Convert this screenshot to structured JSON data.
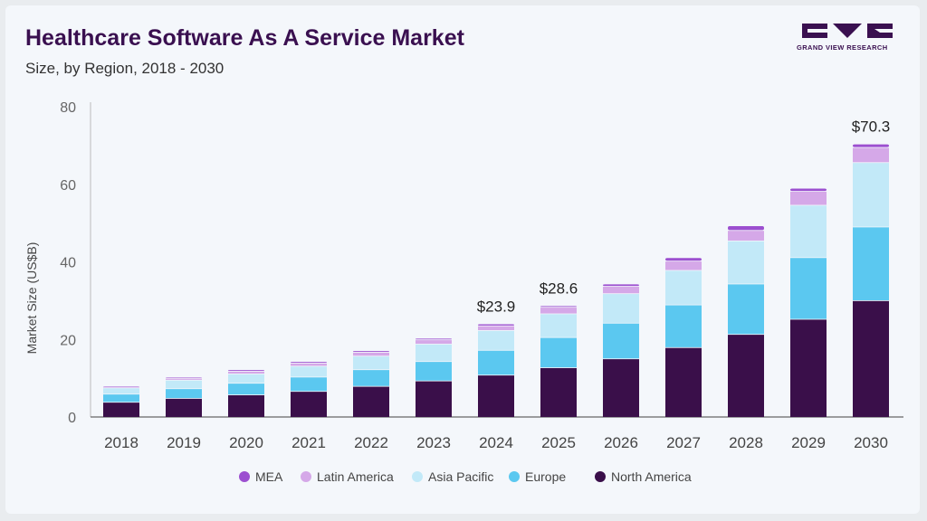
{
  "header": {
    "title": "Healthcare Software As A Service Market",
    "subtitle": "Size, by Region, 2018 - 2030",
    "logo_text": "GRAND VIEW RESEARCH"
  },
  "chart_data": {
    "type": "bar",
    "stacked": true,
    "ylabel": "Market Size (US$B)",
    "xlabel": "",
    "ylim": [
      0,
      80
    ],
    "yticks": [
      0,
      20,
      40,
      60,
      80
    ],
    "grid": false,
    "legend_position": "bottom",
    "categories": [
      "2018",
      "2019",
      "2020",
      "2021",
      "2022",
      "2023",
      "2024",
      "2025",
      "2026",
      "2027",
      "2028",
      "2029",
      "2030"
    ],
    "series": [
      {
        "name": "North America",
        "color": "#3a0f4a",
        "values": [
          3.7,
          4.7,
          5.6,
          6.5,
          7.8,
          9.2,
          10.7,
          12.6,
          14.9,
          17.8,
          21.2,
          25.1,
          29.9
        ]
      },
      {
        "name": "Europe",
        "color": "#5bc8f0",
        "values": [
          2.1,
          2.5,
          3.0,
          3.7,
          4.3,
          5.0,
          6.4,
          7.8,
          9.2,
          11.0,
          13.0,
          15.9,
          19.0
        ]
      },
      {
        "name": "Asia Pacific",
        "color": "#c2e9f8",
        "values": [
          1.6,
          2.2,
          2.4,
          2.8,
          3.5,
          4.5,
          5.1,
          6.1,
          7.6,
          8.9,
          11.1,
          13.5,
          16.6
        ]
      },
      {
        "name": "Latin America",
        "color": "#d5a8e8",
        "values": [
          0.3,
          0.5,
          0.7,
          0.8,
          1.0,
          1.1,
          1.2,
          1.7,
          1.9,
          2.4,
          2.7,
          3.6,
          3.9
        ]
      },
      {
        "name": "MEA",
        "color": "#9c4fd0",
        "values": [
          0.2,
          0.3,
          0.4,
          0.4,
          0.4,
          0.4,
          0.5,
          0.4,
          0.6,
          0.9,
          1.2,
          0.8,
          0.9
        ]
      }
    ],
    "legend_order": [
      "MEA",
      "Latin America",
      "Asia Pacific",
      "Europe",
      "North America"
    ],
    "annotations": [
      {
        "category": "2024",
        "text": "$23.9",
        "value": 23.9
      },
      {
        "category": "2025",
        "text": "$28.6",
        "value": 28.6
      },
      {
        "category": "2030",
        "text": "$70.3",
        "value": 70.3
      }
    ]
  }
}
